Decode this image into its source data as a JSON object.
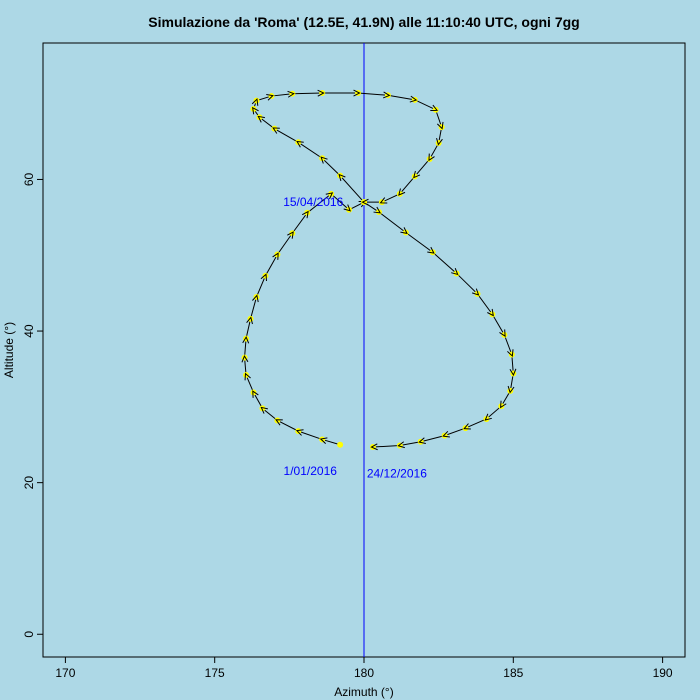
{
  "chart_data": {
    "type": "line",
    "title": "Simulazione da 'Roma' (12.5E, 41.9N) alle 11:10:40 UTC, ogni 7gg",
    "xlabel": "Azimuth (°)",
    "ylabel": "Altitude (°)",
    "xlim": [
      169.25,
      190.75
    ],
    "ylim": [
      -3,
      78
    ],
    "xticks": [
      170,
      175,
      180,
      185,
      190
    ],
    "yticks": [
      0,
      20,
      40,
      60
    ],
    "grid": false,
    "reference_line": {
      "x": 180,
      "color": "#0000ff"
    },
    "line_color": "#000000",
    "marker_color": "#ffff00",
    "annotations": [
      {
        "text": "15/04/2016",
        "x": 178.3,
        "y": 56.5
      },
      {
        "text": "1/01/2016",
        "x": 178.2,
        "y": 21.0
      },
      {
        "text": "24/12/2016",
        "x": 181.1,
        "y": 20.7
      }
    ],
    "series": [
      {
        "x": [
          179.2,
          178.6,
          177.8,
          177.1,
          176.6,
          176.3,
          176.05,
          176.0,
          176.05,
          176.2,
          176.4,
          176.7,
          177.1,
          177.6,
          178.1,
          178.9,
          179.5,
          180.0,
          179.2,
          178.6,
          177.8,
          177.0,
          176.5,
          176.3,
          176.4,
          176.9,
          177.6,
          178.6,
          179.8,
          180.8,
          181.7,
          182.4,
          182.6,
          182.5,
          182.2,
          181.7,
          181.2,
          180.6,
          180.0,
          180.5,
          181.4,
          182.3,
          183.1,
          183.8,
          184.3,
          184.7,
          184.95,
          185.0,
          184.9,
          184.6,
          184.1,
          183.4,
          182.7,
          181.9,
          181.2,
          180.3
        ],
        "y": [
          25.0,
          25.7,
          26.8,
          28.2,
          29.8,
          31.9,
          34.2,
          36.5,
          39.0,
          41.6,
          44.5,
          47.3,
          50.1,
          52.9,
          55.6,
          58.1,
          56.0,
          57.0,
          60.5,
          62.8,
          64.9,
          66.7,
          68.2,
          69.3,
          70.4,
          71.0,
          71.3,
          71.4,
          71.4,
          71.1,
          70.5,
          69.2,
          66.9,
          64.8,
          62.7,
          60.4,
          58.1,
          57.0,
          57.0,
          55.7,
          53.0,
          50.4,
          47.6,
          44.9,
          42.2,
          39.5,
          36.9,
          34.4,
          32.1,
          30.1,
          28.4,
          27.2,
          26.2,
          25.4,
          24.9,
          24.7
        ]
      }
    ]
  }
}
